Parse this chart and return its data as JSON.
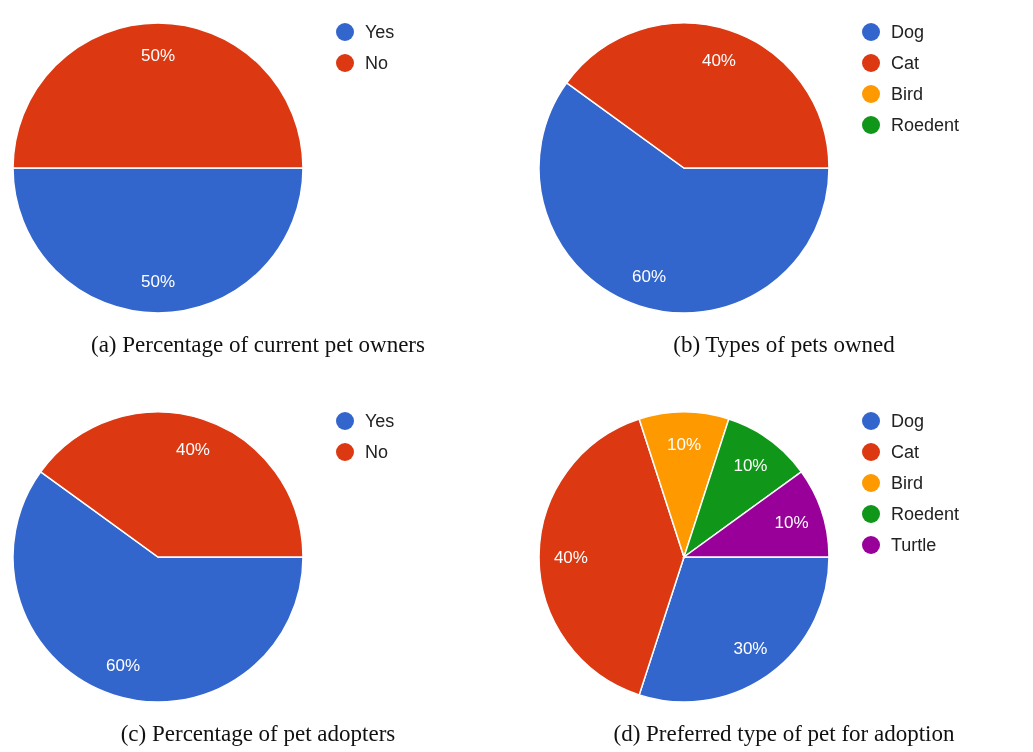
{
  "chart_data": [
    {
      "type": "pie",
      "title": "(a) Percentage of current pet owners",
      "categories": [
        "Yes",
        "No"
      ],
      "values": [
        50,
        50
      ],
      "value_labels": [
        "50%",
        "50%"
      ],
      "colors": [
        "#3366cc",
        "#dc3912"
      ],
      "legend": "right"
    },
    {
      "type": "pie",
      "title": "(b) Types of pets owned",
      "categories": [
        "Dog",
        "Cat",
        "Bird",
        "Roedent"
      ],
      "values": [
        60,
        40,
        0,
        0
      ],
      "value_labels": [
        "60%",
        "40%",
        null,
        null
      ],
      "colors": [
        "#3366cc",
        "#dc3912",
        "#ff9900",
        "#109618"
      ],
      "legend": "right"
    },
    {
      "type": "pie",
      "title": "(c) Percentage of pet adopters",
      "categories": [
        "Yes",
        "No"
      ],
      "values": [
        60,
        40
      ],
      "value_labels": [
        "60%",
        "40%"
      ],
      "colors": [
        "#3366cc",
        "#dc3912"
      ],
      "legend": "right"
    },
    {
      "type": "pie",
      "title": "(d) Preferred type of pet for adoption",
      "categories": [
        "Dog",
        "Cat",
        "Bird",
        "Roedent",
        "Turtle"
      ],
      "values": [
        30,
        40,
        10,
        10,
        10
      ],
      "value_labels": [
        "30%",
        "40%",
        "10%",
        "10%",
        "10%"
      ],
      "colors": [
        "#3366cc",
        "#dc3912",
        "#ff9900",
        "#109618",
        "#990099"
      ],
      "legend": "right"
    }
  ]
}
